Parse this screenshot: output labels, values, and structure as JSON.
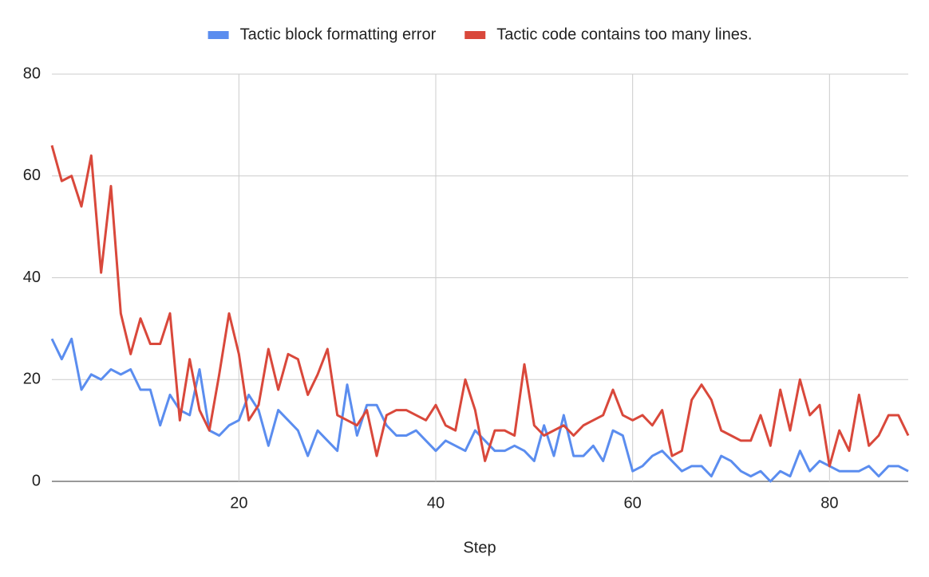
{
  "chart_data": {
    "type": "line",
    "xlabel": "Step",
    "grid": true,
    "legend": "top",
    "x": [
      1,
      2,
      3,
      4,
      5,
      6,
      7,
      8,
      9,
      10,
      11,
      12,
      13,
      14,
      15,
      16,
      17,
      18,
      19,
      20,
      21,
      22,
      23,
      24,
      25,
      26,
      27,
      28,
      29,
      30,
      31,
      32,
      33,
      34,
      35,
      36,
      37,
      38,
      39,
      40,
      41,
      42,
      43,
      44,
      45,
      46,
      47,
      48,
      49,
      50,
      51,
      52,
      53,
      54,
      55,
      56,
      57,
      58,
      59,
      60,
      61,
      62,
      63,
      64,
      65,
      66,
      67,
      68,
      69,
      70,
      71,
      72,
      73,
      74,
      75,
      76,
      77,
      78,
      79,
      80,
      81,
      82,
      83,
      84,
      85,
      86,
      87,
      88
    ],
    "xlim": [
      1,
      88
    ],
    "xticks": [
      20,
      40,
      60,
      80
    ],
    "ylim": [
      0,
      80
    ],
    "yticks": [
      0,
      20,
      40,
      60,
      80
    ],
    "series": [
      {
        "name": "Tactic block formatting error",
        "color": "#5b8def",
        "values": [
          28,
          24,
          28,
          18,
          21,
          20,
          22,
          21,
          22,
          18,
          18,
          11,
          17,
          14,
          13,
          22,
          10,
          9,
          11,
          12,
          17,
          14,
          7,
          14,
          12,
          10,
          5,
          10,
          8,
          6,
          19,
          9,
          15,
          15,
          11,
          9,
          9,
          10,
          8,
          6,
          8,
          7,
          6,
          10,
          8,
          6,
          6,
          7,
          6,
          4,
          11,
          5,
          13,
          5,
          5,
          7,
          4,
          10,
          9,
          2,
          3,
          5,
          6,
          4,
          2,
          3,
          3,
          1,
          5,
          4,
          2,
          1,
          2,
          0,
          2,
          1,
          6,
          2,
          4,
          3,
          2,
          2,
          2,
          3,
          1,
          3,
          3,
          2
        ]
      },
      {
        "name": "Tactic code contains too many lines.",
        "color": "#d9483b",
        "values": [
          66,
          59,
          60,
          54,
          64,
          41,
          58,
          33,
          25,
          32,
          27,
          27,
          33,
          12,
          24,
          14,
          10,
          21,
          33,
          25,
          12,
          15,
          26,
          18,
          25,
          24,
          17,
          21,
          26,
          13,
          12,
          11,
          14,
          5,
          13,
          14,
          14,
          13,
          12,
          15,
          11,
          10,
          20,
          14,
          4,
          10,
          10,
          9,
          23,
          11,
          9,
          10,
          11,
          9,
          11,
          12,
          13,
          18,
          13,
          12,
          13,
          11,
          14,
          5,
          6,
          16,
          19,
          16,
          10,
          9,
          8,
          8,
          13,
          7,
          18,
          10,
          20,
          13,
          15,
          3,
          10,
          6,
          17,
          7,
          9,
          13,
          13,
          9
        ]
      }
    ]
  }
}
